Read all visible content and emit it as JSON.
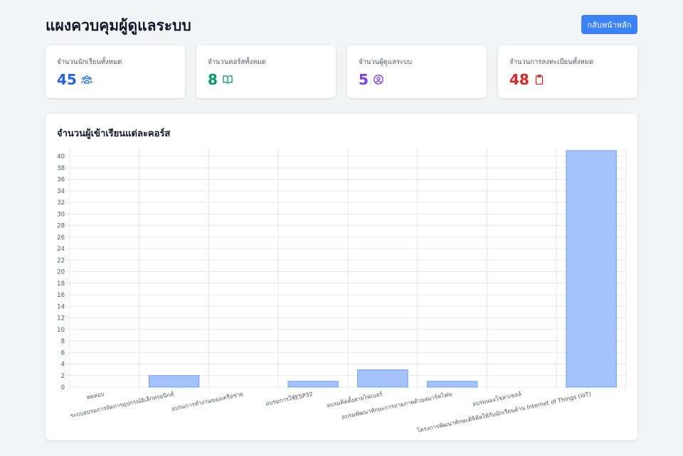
{
  "header": {
    "title": "แผงควบคุมผู้ดูแลระบบ",
    "back_button": "กลับหน้าหลัก"
  },
  "stats": [
    {
      "label": "จำนวนนักเรียนทั้งหมด",
      "value": "45",
      "color": "#2563eb",
      "icon": "users-icon"
    },
    {
      "label": "จำนวนคอร์สทั้งหมด",
      "value": "8",
      "color": "#059669",
      "icon": "book-icon"
    },
    {
      "label": "จำนวนผู้ดูแลระบบ",
      "value": "5",
      "color": "#7c3aed",
      "icon": "user-circle-icon"
    },
    {
      "label": "จำนวนการลงทะเบียนทั้งหมด",
      "value": "48",
      "color": "#dc2626",
      "icon": "clipboard-icon"
    }
  ],
  "chart_section": {
    "title": "จำนวนผู้เข้าเรียนแต่ละคอร์ส"
  },
  "chart_data": {
    "type": "bar",
    "categories": [
      "ทดสอบ",
      "ระบบอบรมการจัดการอุปกรณ์อิเล็กทรอนิกส์",
      "อบรมการทำงานของเครือข่าย",
      "อบรมการใช้ESP32",
      "อบรมติดตั้งสายไฟเบอร์",
      "อบรมพัฒนาทักษะการถ่ายภาพด้วยสมาร์ทโฟน",
      "อบรมแผงโซล่าเซลล์",
      "โครงการพัฒนาทักษะดิจิทัลให้กับนักเรียนด้าน Internet of Things (IoT)"
    ],
    "values": [
      0,
      2,
      0,
      1,
      3,
      1,
      0,
      41
    ],
    "ylim": [
      0,
      41
    ],
    "yticks": [
      0,
      2,
      4,
      6,
      8,
      10,
      12,
      14,
      16,
      18,
      20,
      22,
      24,
      26,
      28,
      30,
      32,
      34,
      36,
      38,
      40
    ],
    "grid": true,
    "bar_color": "#a5c3fa",
    "bar_border": "#6b9cf0"
  }
}
